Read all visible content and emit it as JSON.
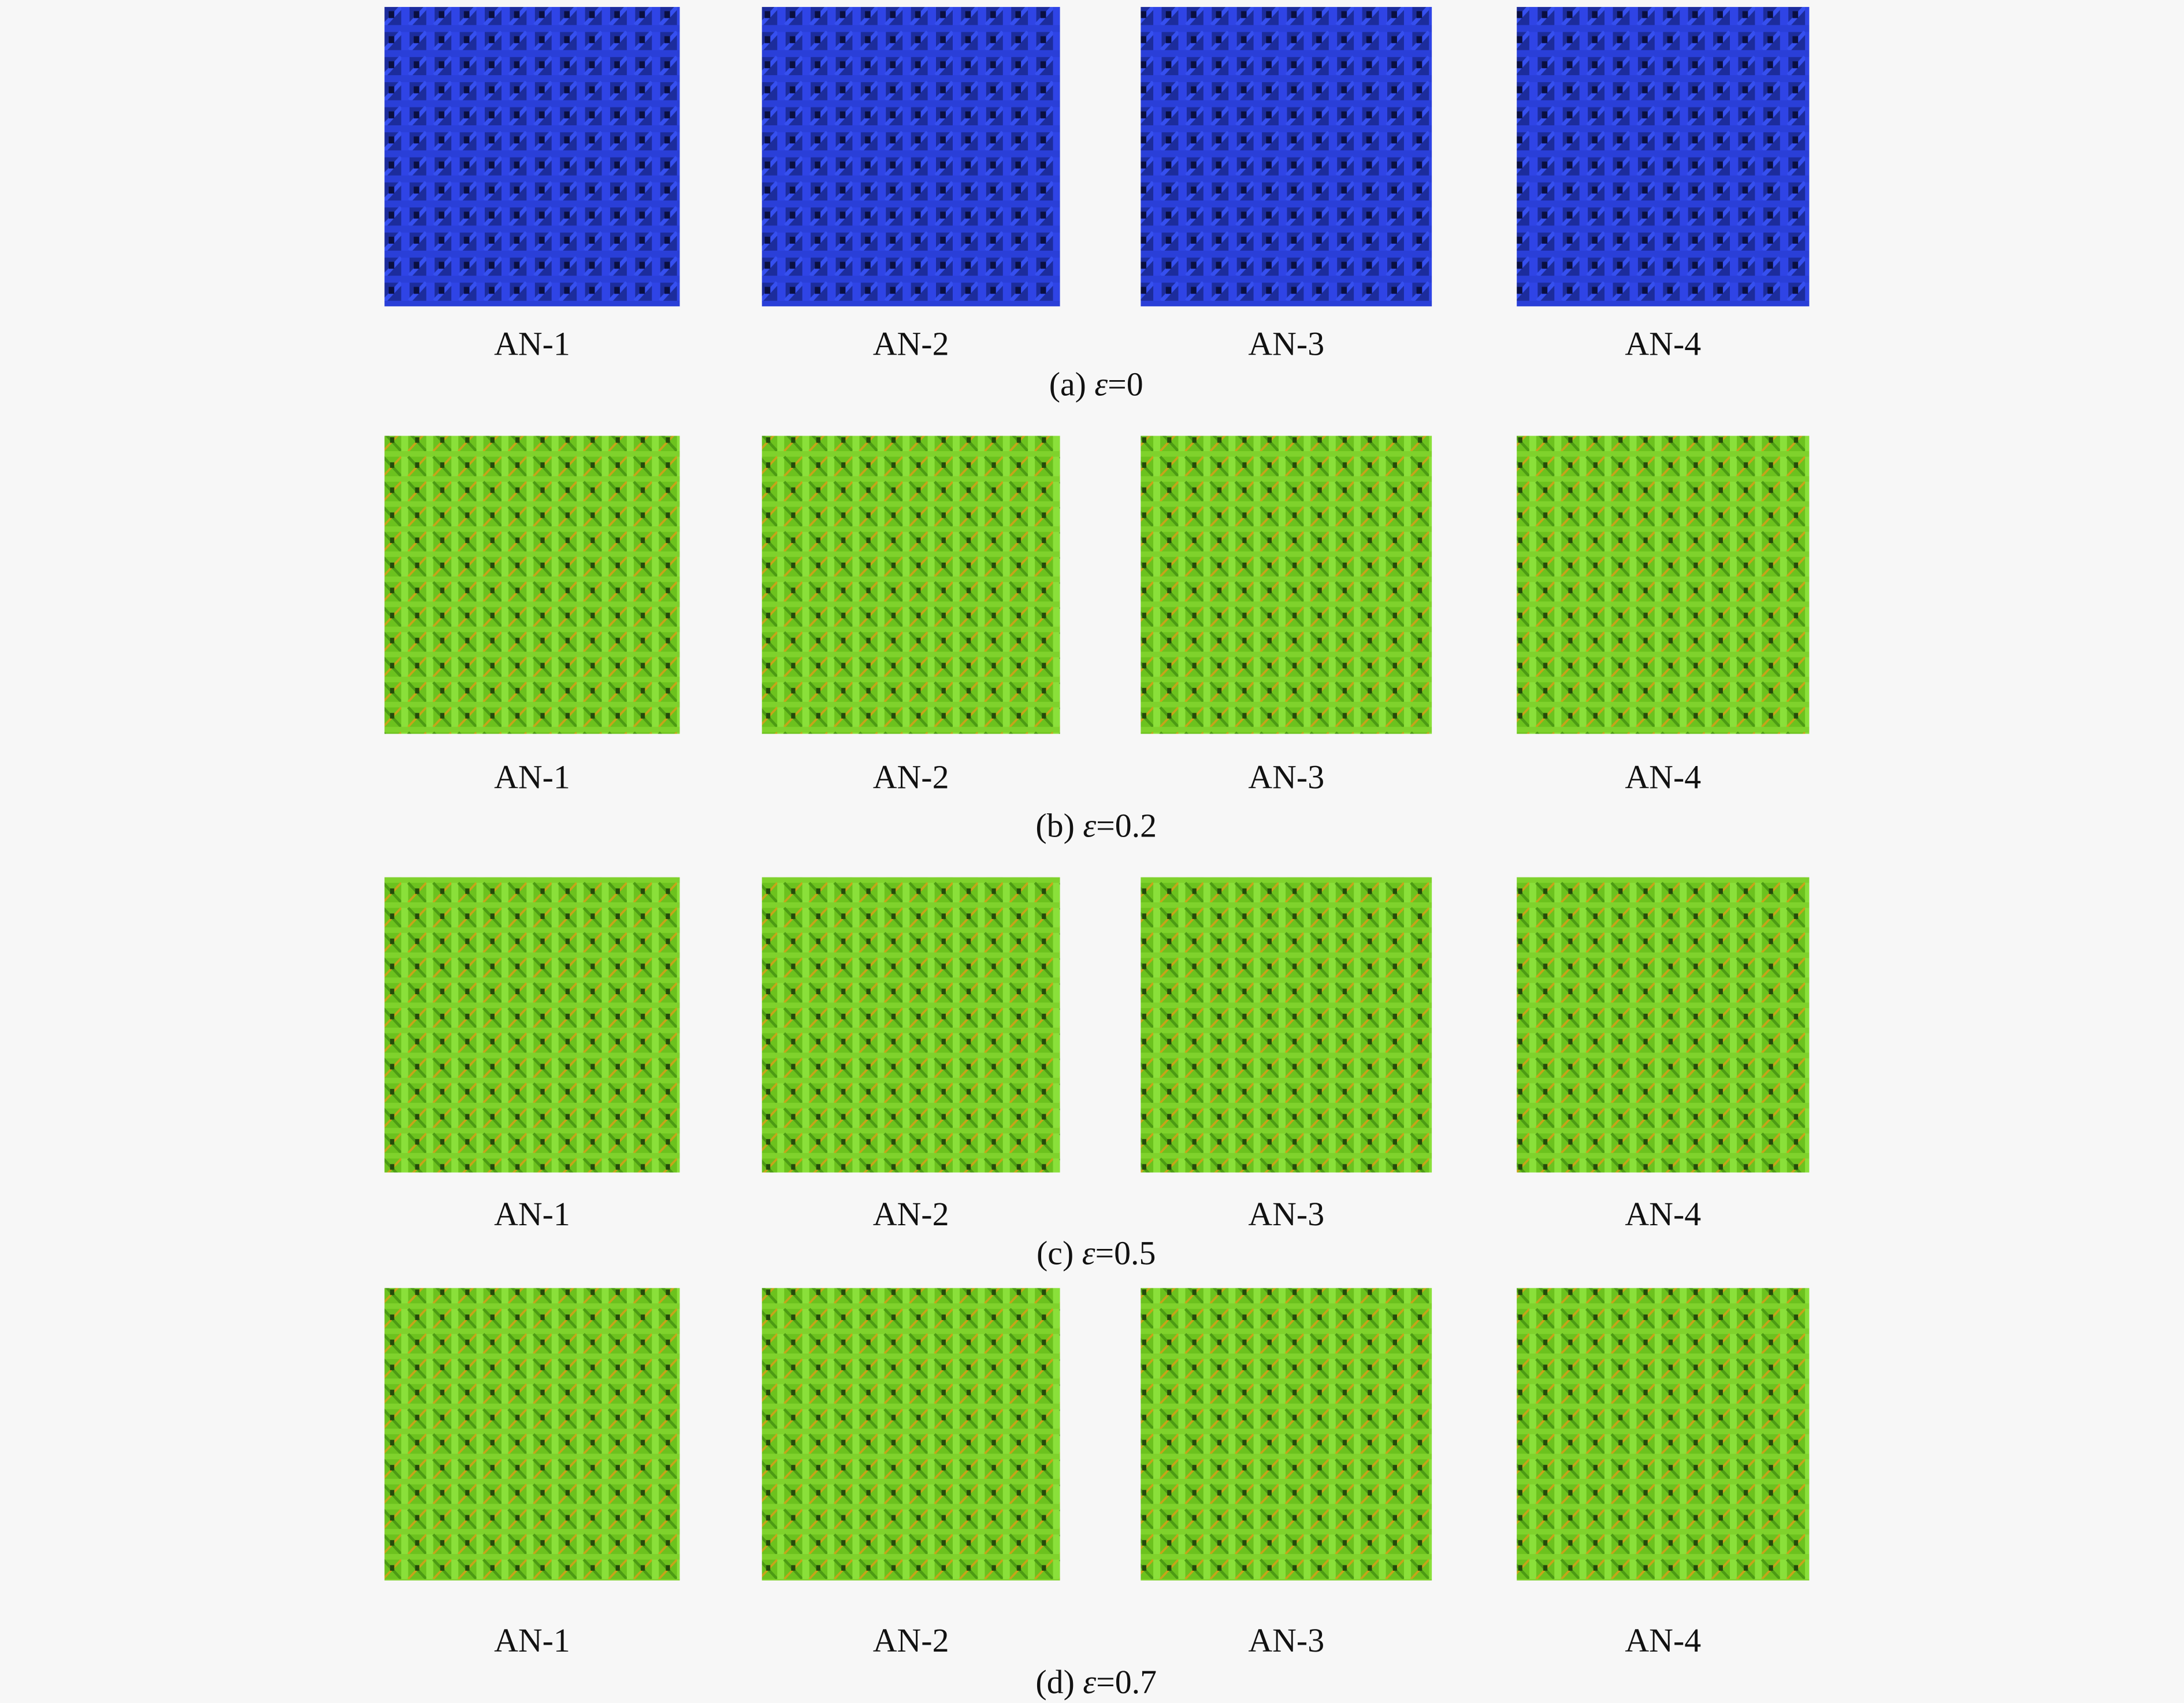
{
  "figure": {
    "rows": [
      {
        "panels": [
          "AN-1",
          "AN-2",
          "AN-3",
          "AN-4"
        ],
        "caption": {
          "label": "(a)",
          "symbol": "ε",
          "value": "=0"
        }
      },
      {
        "panels": [
          "AN-1",
          "AN-2",
          "AN-3",
          "AN-4"
        ],
        "caption": {
          "label": "(b)",
          "symbol": "ε",
          "value": "=0.2"
        }
      },
      {
        "panels": [
          "AN-1",
          "AN-2",
          "AN-3",
          "AN-4"
        ],
        "caption": {
          "label": "(c)",
          "symbol": "ε",
          "value": "=0.5"
        }
      },
      {
        "panels": [
          "AN-1",
          "AN-2",
          "AN-3",
          "AN-4"
        ],
        "caption": {
          "label": "(d)",
          "symbol": "ε",
          "value": "=0.7"
        }
      }
    ]
  }
}
